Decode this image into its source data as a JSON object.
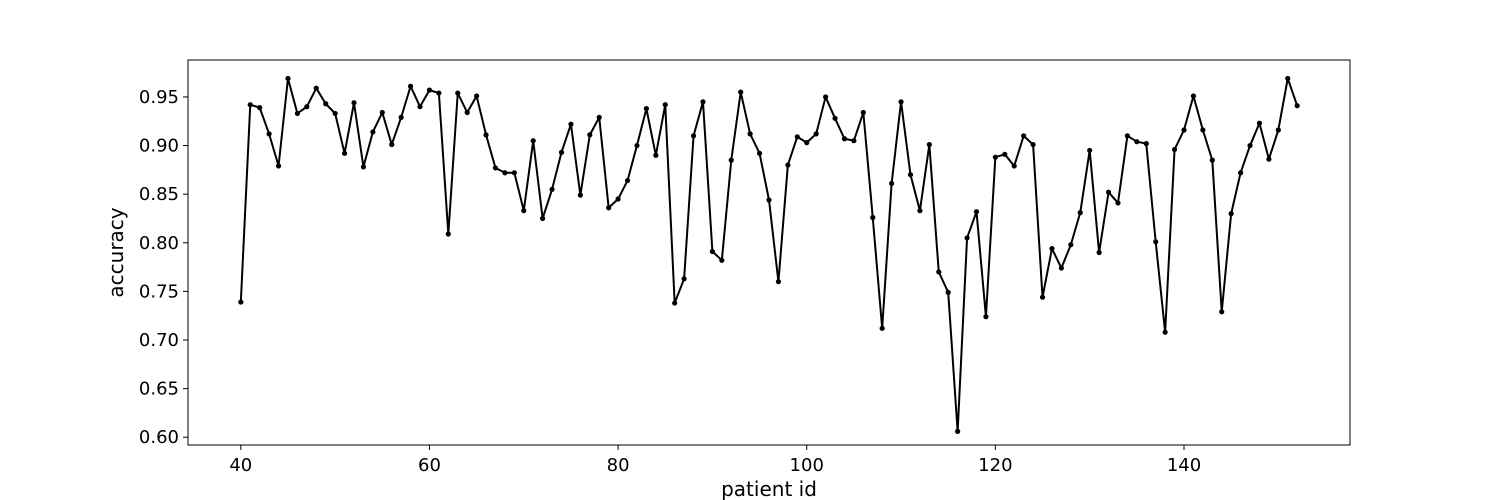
{
  "chart_data": {
    "type": "line",
    "title": "",
    "xlabel": "patient id",
    "ylabel": "accuracy",
    "xlim": [
      34.4,
      157.6
    ],
    "ylim": [
      0.592,
      0.988
    ],
    "xticks": [
      40,
      60,
      80,
      100,
      120,
      140
    ],
    "yticks": [
      0.6,
      0.65,
      0.7,
      0.75,
      0.8,
      0.85,
      0.9,
      0.95
    ],
    "grid": false,
    "line_color": "#000000",
    "marker": "circle",
    "x": [
      40,
      41,
      42,
      43,
      44,
      45,
      46,
      47,
      48,
      49,
      50,
      51,
      52,
      53,
      54,
      55,
      56,
      57,
      58,
      59,
      60,
      61,
      62,
      63,
      64,
      65,
      66,
      67,
      68,
      69,
      70,
      71,
      72,
      73,
      74,
      75,
      76,
      77,
      78,
      79,
      80,
      81,
      82,
      83,
      84,
      85,
      86,
      87,
      88,
      89,
      90,
      91,
      92,
      93,
      94,
      95,
      96,
      97,
      98,
      99,
      100,
      101,
      102,
      103,
      104,
      105,
      106,
      107,
      108,
      109,
      110,
      111,
      112,
      113,
      114,
      115,
      116,
      117,
      118,
      119,
      120,
      121,
      122,
      123,
      124,
      125,
      126,
      127,
      128,
      129,
      130,
      131,
      132,
      133,
      134,
      135,
      136,
      137,
      138,
      139,
      140,
      141,
      142,
      143,
      144,
      145,
      146,
      147,
      148,
      149,
      150,
      151,
      152
    ],
    "values": [
      0.739,
      0.942,
      0.939,
      0.912,
      0.879,
      0.969,
      0.933,
      0.94,
      0.959,
      0.943,
      0.933,
      0.892,
      0.944,
      0.878,
      0.914,
      0.934,
      0.901,
      0.929,
      0.961,
      0.94,
      0.957,
      0.954,
      0.809,
      0.954,
      0.934,
      0.951,
      0.911,
      0.877,
      0.872,
      0.872,
      0.833,
      0.905,
      0.825,
      0.855,
      0.893,
      0.922,
      0.849,
      0.911,
      0.929,
      0.836,
      0.845,
      0.864,
      0.9,
      0.938,
      0.89,
      0.942,
      0.738,
      0.763,
      0.91,
      0.945,
      0.791,
      0.782,
      0.885,
      0.955,
      0.912,
      0.892,
      0.844,
      0.76,
      0.88,
      0.909,
      0.903,
      0.912,
      0.95,
      0.928,
      0.907,
      0.905,
      0.934,
      0.826,
      0.712,
      0.861,
      0.945,
      0.87,
      0.833,
      0.901,
      0.77,
      0.749,
      0.606,
      0.805,
      0.832,
      0.724,
      0.888,
      0.891,
      0.879,
      0.91,
      0.901,
      0.744,
      0.794,
      0.774,
      0.798,
      0.831,
      0.895,
      0.79,
      0.852,
      0.841,
      0.91,
      0.904,
      0.902,
      0.801,
      0.708,
      0.896,
      0.916,
      0.951,
      0.916,
      0.885,
      0.729,
      0.83,
      0.872,
      0.9,
      0.923,
      0.886,
      0.916,
      0.969,
      0.941
    ]
  }
}
